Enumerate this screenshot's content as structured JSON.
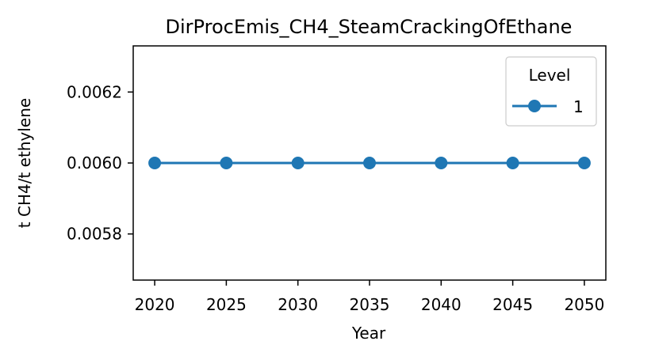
{
  "chart_data": {
    "type": "line",
    "title": "DirProcEmis_CH4_SteamCrackingOfEthane",
    "xlabel": "Year",
    "ylabel": "t CH4/t ethylene",
    "x": [
      2020,
      2025,
      2030,
      2035,
      2040,
      2045,
      2050
    ],
    "xticks": [
      "2020",
      "2025",
      "2030",
      "2035",
      "2040",
      "2045",
      "2050"
    ],
    "xlim": [
      2018.5,
      2051.5
    ],
    "yticks": [
      "0.0058",
      "0.0060",
      "0.0062"
    ],
    "ytick_values": [
      0.0058,
      0.006,
      0.0062
    ],
    "ylim": [
      0.00567,
      0.00633
    ],
    "grid": false,
    "legend": {
      "title": "Level",
      "placement": "top-right"
    },
    "series": [
      {
        "name": "1",
        "color": "#1f77b4",
        "marker": "circle",
        "values": [
          0.006,
          0.006,
          0.006,
          0.006,
          0.006,
          0.006,
          0.006
        ]
      }
    ]
  }
}
